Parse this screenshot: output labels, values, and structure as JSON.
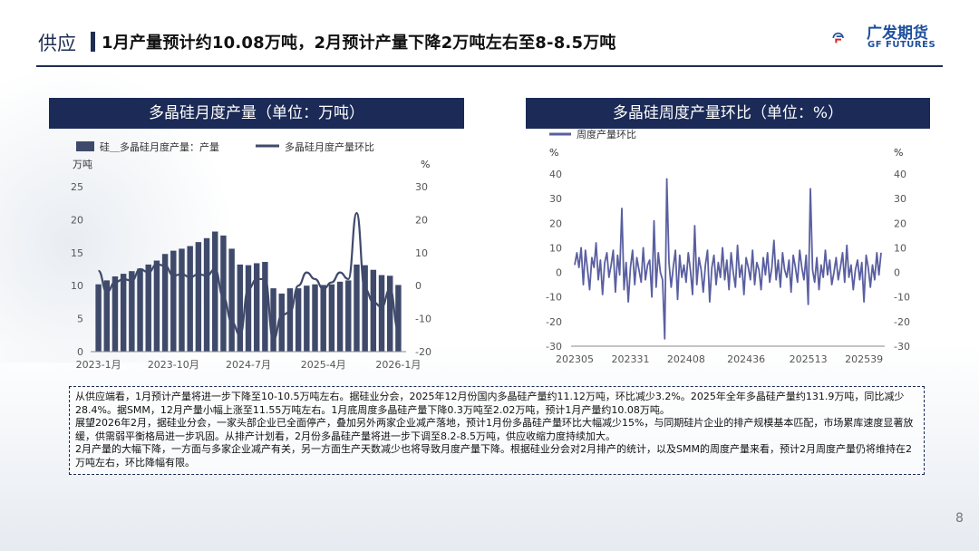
{
  "header": {
    "section": "供应",
    "title": "1月产量预计约10.08万吨，2月预计产量下降2万吨左右至8-8.5万吨",
    "logo_cn": "广发期货",
    "logo_en": "GF FUTURES",
    "logo_icon": "gf-logo-icon",
    "accent_color": "#1b2a56",
    "brand_color": "#1f4f9e"
  },
  "chart_data": [
    {
      "type": "bar",
      "title": "多晶硅月度产量（单位：万吨）",
      "legend": [
        "硅＿多晶硅月度产量：产量",
        "多晶硅月度产量环比"
      ],
      "left_unit": "万吨",
      "right_unit": "%",
      "ylim": [
        0,
        25
      ],
      "y2lim": [
        -20,
        30
      ],
      "yticks": [
        "0",
        "5",
        "10",
        "15",
        "20",
        "25"
      ],
      "y2ticks": [
        "-20",
        "-10",
        "0",
        "10",
        "20",
        "30"
      ],
      "xticks": [
        "2023-1月",
        "2023-10月",
        "2024-7月",
        "2025-4月",
        "2026-1月"
      ],
      "xtick_index": [
        0,
        9,
        18,
        27,
        36
      ],
      "series": [
        {
          "name": "硅＿多晶硅月度产量：产量",
          "kind": "bar",
          "color": "#3f4a6b",
          "values": [
            10.2,
            10.8,
            11.4,
            11.8,
            12.2,
            12.6,
            13.2,
            13.8,
            14.8,
            15.3,
            15.6,
            16.0,
            16.6,
            17.2,
            18.2,
            17.6,
            15.6,
            13.2,
            13.1,
            13.4,
            13.6,
            9.6,
            8.8,
            9.6,
            9.6,
            10.0,
            10.2,
            10.1,
            10.2,
            10.6,
            10.8,
            13.2,
            13.1,
            12.4,
            11.6,
            11.5,
            10.1
          ]
        },
        {
          "name": "多晶硅月度产量环比",
          "kind": "line",
          "color": "#3f4a6b",
          "values": [
            4.5,
            -2.0,
            1.0,
            2.0,
            1.5,
            5.0,
            4.0,
            6.5,
            6.0,
            3.0,
            3.5,
            2.5,
            3.5,
            3.0,
            5.0,
            -3.5,
            -11.0,
            -15.0,
            -1.0,
            2.0,
            2.0,
            -16.5,
            -9.0,
            -8.0,
            0.0,
            4.0,
            2.0,
            -1.0,
            1.0,
            4.0,
            2.0,
            22.0,
            -1.0,
            -5.0,
            -6.5,
            -1.0,
            -13.5
          ]
        }
      ]
    },
    {
      "type": "line",
      "title": "多晶硅周度产量环比（单位：%）",
      "legend": [
        "周度产量环比"
      ],
      "left_unit": "%",
      "right_unit": "%",
      "ylim": [
        -30,
        40
      ],
      "yticks": [
        "-30",
        "-20",
        "-10",
        "0",
        "10",
        "20",
        "30",
        "40"
      ],
      "xticks": [
        "202305",
        "202331",
        "202408",
        "202436",
        "202513",
        "202539"
      ],
      "xtick_index": [
        0,
        26,
        52,
        80,
        109,
        135
      ],
      "series": [
        {
          "name": "周度产量环比",
          "color": "#5a5fa0",
          "values": [
            3,
            8,
            2,
            10,
            -5,
            9,
            1,
            -7,
            6,
            2,
            12,
            -3,
            5,
            -9,
            4,
            8,
            -2,
            3,
            9,
            -8,
            7,
            -1,
            26,
            -7,
            4,
            -12,
            2,
            9,
            -5,
            6,
            1,
            -4,
            10,
            -3,
            3,
            5,
            -10,
            21,
            -6,
            8,
            0,
            -3,
            -27,
            38,
            4,
            -6,
            2,
            9,
            -11,
            7,
            -2,
            3,
            -4,
            8,
            1,
            -9,
            19,
            -5,
            6,
            1,
            -8,
            3,
            9,
            -12,
            2,
            7,
            -5,
            4,
            -2,
            10,
            -3,
            5,
            -7,
            8,
            0,
            -6,
            11,
            -2,
            3,
            -9,
            6,
            2,
            -3,
            9,
            -5,
            4,
            1,
            -7,
            6,
            -1,
            8,
            -4,
            2,
            13,
            -3,
            5,
            -6,
            8,
            1,
            -2,
            5,
            -8,
            7,
            2,
            -4,
            9,
            2,
            -3,
            7,
            -13,
            34,
            1,
            -4,
            6,
            -7,
            3,
            -2,
            9,
            -1,
            5,
            -5,
            0,
            6,
            -3,
            2,
            8,
            -4,
            11,
            -2,
            3,
            -7,
            1,
            5,
            -3,
            4,
            -12,
            7,
            2,
            -6,
            3,
            -3,
            8,
            -1,
            8
          ]
        }
      ]
    }
  ],
  "notes": [
    "从供应端看，1月预计产量将进一步下降至10-10.5万吨左右。据硅业分会，2025年12月份国内多晶硅产量约11.12万吨，环比减少3.2%。2025年全年多晶硅产量约131.9万吨，同比减少28.4%。据SMM，12月产量小幅上涨至11.55万吨左右。1月底周度多晶硅产量下降0.3万吨至2.02万吨，预计1月产量约10.08万吨。",
    "展望2026年2月，据硅业分会，一家头部企业已全面停产，叠加另外两家企业减产落地，预计1月份多晶硅产量环比大幅减少15%，与同期硅片企业的排产规模基本匹配，市场累库速度显著放缓，供需弱平衡格局进一步巩固。从排产计划看，2月份多晶硅产量将进一步下调至8.2-8.5万吨，供应收缩力度持续加大。",
    "2月产量的大幅下降，一方面与多家企业减产有关，另一方面生产天数减少也将导致月度产量下降。根据硅业分会对2月排产的统计，以及SMM的周度产量来看，预计2月周度产量仍将维持在2万吨左右，环比降幅有限。"
  ],
  "page_number": "8"
}
